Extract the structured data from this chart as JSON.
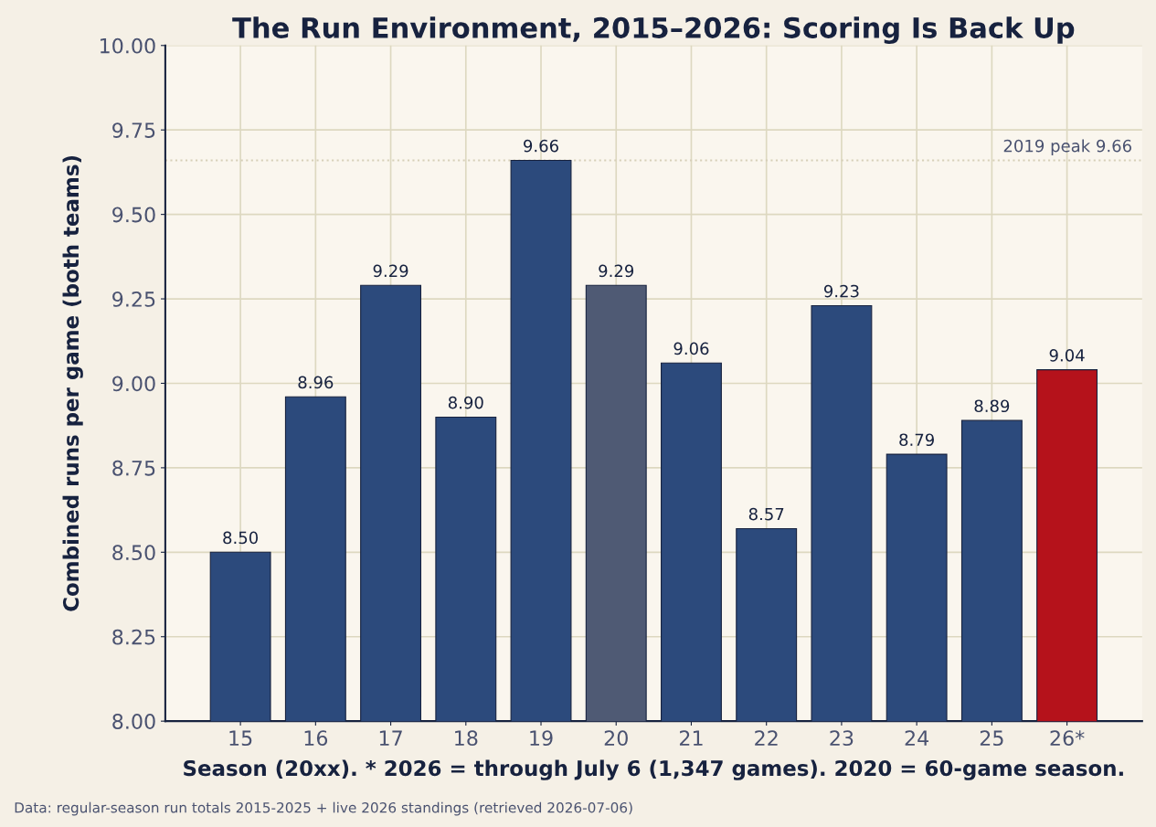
{
  "chart_data": {
    "type": "bar",
    "title": "The Run Environment, 2015–2026: Scoring Is Back Up",
    "xlabel": "Season (20xx). * 2026 = through July 6 (1,347 games). 2020 = 60-game season.",
    "ylabel": "Combined runs per game (both teams)",
    "categories": [
      "15",
      "16",
      "17",
      "18",
      "19",
      "20",
      "21",
      "22",
      "23",
      "24",
      "25",
      "26*"
    ],
    "values": [
      8.5,
      8.96,
      9.29,
      8.9,
      9.66,
      9.29,
      9.06,
      8.57,
      9.23,
      8.79,
      8.89,
      9.04
    ],
    "value_labels": [
      "8.50",
      "8.96",
      "9.29",
      "8.90",
      "9.66",
      "9.29",
      "9.06",
      "8.57",
      "9.23",
      "8.79",
      "8.89",
      "9.04"
    ],
    "colors": [
      "#2c4a7c",
      "#2c4a7c",
      "#2c4a7c",
      "#2c4a7c",
      "#2c4a7c",
      "#4f5a74",
      "#2c4a7c",
      "#2c4a7c",
      "#2c4a7c",
      "#2c4a7c",
      "#2c4a7c",
      "#b5121b"
    ],
    "ylim": [
      8.0,
      10.0
    ],
    "yticks": [
      {
        "value": 8.0,
        "label": "8.00"
      },
      {
        "value": 8.25,
        "label": "8.25"
      },
      {
        "value": 8.5,
        "label": "8.50"
      },
      {
        "value": 8.75,
        "label": "8.75"
      },
      {
        "value": 9.0,
        "label": "9.00"
      },
      {
        "value": 9.25,
        "label": "9.25"
      },
      {
        "value": 9.5,
        "label": "9.50"
      },
      {
        "value": 9.75,
        "label": "9.75"
      },
      {
        "value": 10.0,
        "label": "10.00"
      }
    ],
    "ref_lines": [
      {
        "axis": "y",
        "value": 9.66,
        "label": "2019 peak 9.66",
        "color": "#d6cfb8",
        "line_style": "dotted"
      }
    ],
    "grid": true,
    "annotations": [
      "Data: regular-season run totals 2015-2025 + live 2026 standings (retrieved 2026-07-06)"
    ]
  }
}
